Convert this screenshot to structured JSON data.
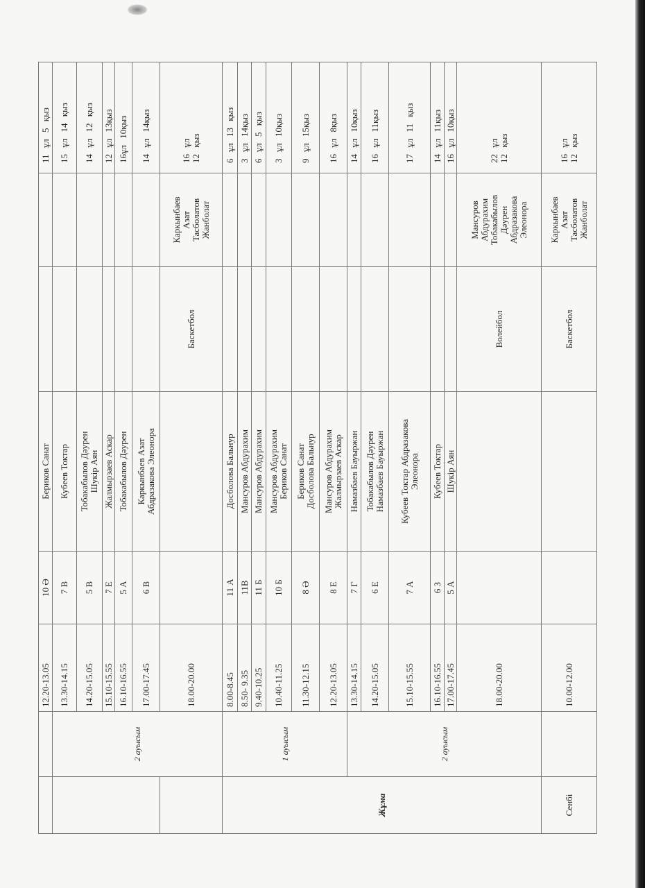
{
  "days": [
    {
      "label": "",
      "rows": 1
    },
    {
      "label": "",
      "rows": 5
    },
    {
      "label": "",
      "rows": 1
    },
    {
      "label": "Жұма",
      "rows": 12
    },
    {
      "label": "Сенбі",
      "rows": 1,
      "saturday": true
    }
  ],
  "shifts": [
    {
      "label": "",
      "rows": 1
    },
    {
      "label": "2 ауысым",
      "rows": 6
    },
    {
      "label": "1 ауысым",
      "rows": 6
    },
    {
      "label": "2 ауысым",
      "rows": 6
    },
    {
      "label": "",
      "rows": 1
    }
  ],
  "rows": [
    {
      "time": "12.20-13.05",
      "class": "10 Ә",
      "names": [
        "Бериков  Санат"
      ],
      "sport": "",
      "team": [],
      "count": [
        "11 ұл   5 қыз"
      ]
    },
    {
      "time": "13.30-14.15",
      "class": "7 В",
      "names": [
        "Кубеев  Токтар"
      ],
      "sport": "",
      "team": [],
      "count": [
        "15 ұл   14  қыз"
      ]
    },
    {
      "time": "14.20-15.05",
      "class": "5 В",
      "names": [
        "Тобакабылов  Дәурен",
        "Шукір  Аян"
      ],
      "sport": "",
      "team": [],
      "count": [
        "14  ұл   12 қыз"
      ]
    },
    {
      "time": "15.10-15.55",
      "class": "7 Е",
      "names": [
        "Жалмырзаев  Аскар"
      ],
      "sport": "",
      "team": [],
      "count": [
        "12 ұл  13қыз"
      ]
    },
    {
      "time": "16.10-16.55",
      "class": "5 А",
      "names": [
        "Тобакабылов  Дәурен"
      ],
      "sport": "",
      "team": [],
      "count": [
        "16ұл    10қыз"
      ]
    },
    {
      "time": "17.00-17.45",
      "class": "6 В",
      "names": [
        "Каркынбаев  Азат",
        "Абдразакова  Элеонора"
      ],
      "sport": "",
      "team": [],
      "count": [
        "14  ұл    14қыз"
      ]
    },
    {
      "time": "18.00-20.00",
      "class": "",
      "names": [],
      "sport": "Баскетбол",
      "team": [
        "Каркынбаев",
        "Азат",
        "Тасболатов",
        "Жанболат"
      ],
      "count": [
        "16 ұл",
        "12 қыз"
      ]
    },
    {
      "time": "8.00-8.45",
      "class": "11 А",
      "names": [
        "Досболова  Бальнур"
      ],
      "sport": "",
      "team": [],
      "count": [
        "6  ұл   13 қыз"
      ]
    },
    {
      "time": "8.50- 9.35",
      "class": "11В",
      "names": [
        "Мансуров  Абдурахим"
      ],
      "sport": "",
      "team": [],
      "count": [
        "3  ұл   14қыз"
      ]
    },
    {
      "time": "9.40-10.25",
      "class": "11 Б",
      "names": [
        "Мансуров  Абдурахим"
      ],
      "sport": "",
      "team": [],
      "count": [
        "6 ұл    5  қыз"
      ]
    },
    {
      "time": "10.40-11.25",
      "class": "10 Б",
      "names": [
        "Мансуров  Абдурахим",
        "Бериков  Санат"
      ],
      "sport": "",
      "team": [],
      "count": [
        "3  ұл    10қыз"
      ]
    },
    {
      "time": "11.30-12.15",
      "class": "8  Ә",
      "names": [
        "Бериков  Санат",
        "Досболова  Бальнур"
      ],
      "sport": "",
      "team": [],
      "count": [
        "9 ұл   15қыз"
      ]
    },
    {
      "time": "12.20-13.05",
      "class": "8 Е",
      "names": [
        "Мансуров  Абдурахим",
        "Жалмырзаев  Аскар"
      ],
      "sport": "",
      "team": [],
      "count": [
        "16  ұл    8қыз"
      ]
    },
    {
      "time": "13.30-14.15",
      "class": "7 Г",
      "names": [
        "Намазбаев  Бауыржан"
      ],
      "sport": "",
      "team": [],
      "count": [
        "14  ұл   10қыз"
      ]
    },
    {
      "time": "14.20-15.05",
      "class": "6 Е",
      "names": [
        "Тобакабылов  Дәурен",
        "Намазбаев  Бауыржан"
      ],
      "sport": "",
      "team": [],
      "count": [
        "16 ұл   11қыз"
      ]
    },
    {
      "time": "15.10-15.55",
      "class": "7 А",
      "names": [
        "Кубеев  Токтар Абдразакова",
        "Элеонора"
      ],
      "sport": "",
      "team": [],
      "count": [
        "17  ұл    11 қыз"
      ]
    },
    {
      "time": "16.10-16.55",
      "class": "6 З",
      "names": [
        "Кубеев  Токтар"
      ],
      "sport": "",
      "team": [],
      "count": [
        "14  ұл    11қыз"
      ]
    },
    {
      "time": "17.00-17.45",
      "class": "5 А",
      "names": [
        "Шукір  Аян"
      ],
      "sport": "",
      "team": [],
      "count": [
        "16  ұл   10қыз"
      ]
    },
    {
      "time": "18.00-20.00",
      "class": "",
      "names": [],
      "sport": "Волейбол",
      "team": [
        "Мансуров",
        "Абдурахим",
        "Тобакабылов",
        "Дәурен",
        "Абдразакова",
        "Элеонора"
      ],
      "count": [
        "22  ұл",
        "12  қыз"
      ]
    },
    {
      "time": "10.00-12.00",
      "class": "",
      "names": [],
      "sport": "Баскетбол",
      "team": [
        "Каркынбаев",
        "Азат",
        "Тасболатов",
        "Жанболат"
      ],
      "count": [
        "16 ұл",
        "12 қыз"
      ]
    }
  ]
}
